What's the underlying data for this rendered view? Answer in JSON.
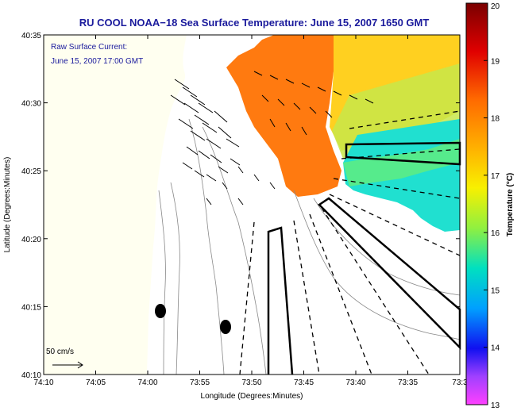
{
  "title": "RU COOL  NOAA−18  Sea Surface Temperature:  June 15, 2007 1650 GMT",
  "inset": {
    "line1": "Raw Surface Current:",
    "line2": "June 15, 2007 17:00 GMT"
  },
  "scale_label": "50 cm/s",
  "xlabel": "Longitude (Degrees:Minutes)",
  "ylabel": "Latitude (Degrees:Minutes)",
  "x_ticks": [
    "74:10",
    "74:05",
    "74:00",
    "73:55",
    "73:50",
    "73:45",
    "73:40",
    "73:35",
    "73:3"
  ],
  "y_ticks": [
    "40:35",
    "40:30",
    "40:25",
    "40:20",
    "40:15",
    "40:10"
  ],
  "colorbar": {
    "label": "Temperature (°C)",
    "ticks": [
      "20",
      "19",
      "18",
      "17",
      "16",
      "15",
      "14",
      "13"
    ],
    "range": [
      13,
      20
    ]
  },
  "colors": {
    "title_text": "#1a1a9c",
    "land": "#fffff0",
    "sea_warm": "#ff6a00",
    "sea_mid": "#ffd200",
    "sea_cool": "#00e0e0"
  }
}
